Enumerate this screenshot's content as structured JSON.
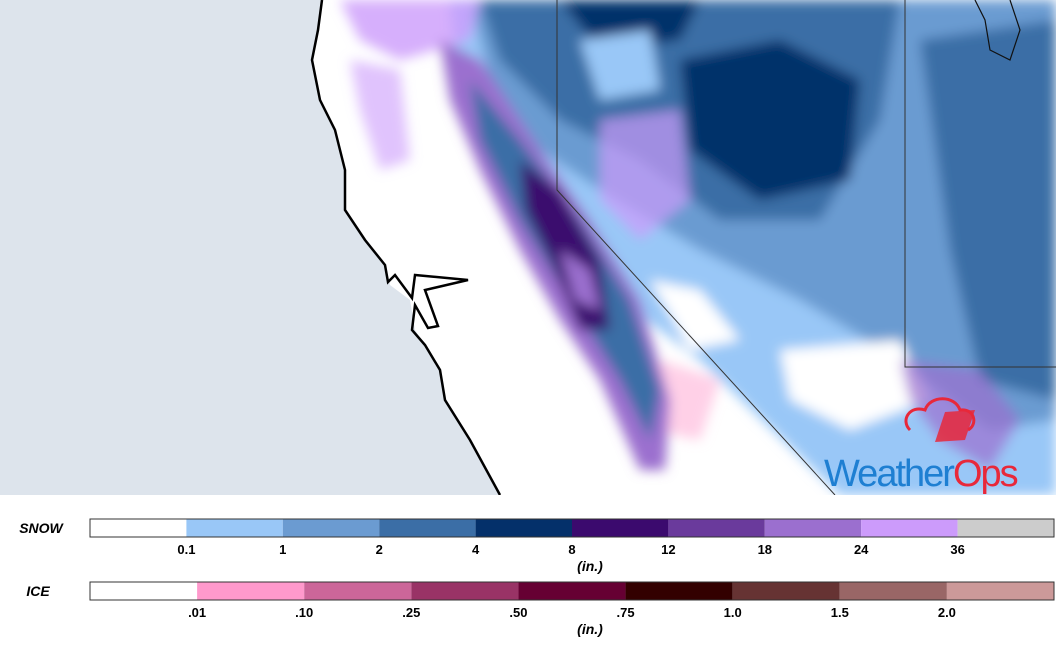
{
  "legend": {
    "snow": {
      "label": "SNOW",
      "colors": [
        "#ffffff",
        "#99c7f7",
        "#6b9bd1",
        "#3b6ea6",
        "#04306a",
        "#3b0a6e",
        "#6a3a9c",
        "#9b6fcf",
        "#cc9bfb",
        "#cccccc"
      ],
      "ticks": [
        "0.1",
        "1",
        "2",
        "4",
        "8",
        "12",
        "18",
        "24",
        "36"
      ],
      "unit": "(in.)"
    },
    "ice": {
      "label": "ICE",
      "colors": [
        "#ffffff",
        "#ff99cc",
        "#cc6699",
        "#993366",
        "#660033",
        "#330000",
        "#663333",
        "#996666",
        "#cc9999"
      ],
      "ticks": [
        ".01",
        ".10",
        ".25",
        ".50",
        ".75",
        "1.0",
        "1.5",
        "2.0"
      ],
      "unit": "(in.)"
    }
  },
  "logo": {
    "weather": "Weather",
    "ops": "Ops"
  }
}
